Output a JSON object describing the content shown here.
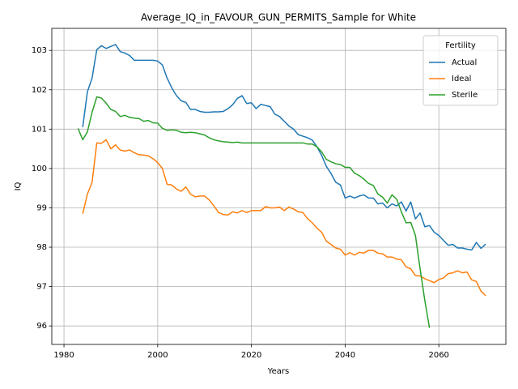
{
  "chart_data": {
    "type": "line",
    "title": "Average_IQ_in_FAVOUR_GUN_PERMITS_Sample for White",
    "x_label": "Years",
    "y_label": "IQ",
    "x": [
      1983,
      1984,
      1985,
      1986,
      1987,
      1988,
      1989,
      1990,
      1991,
      1992,
      1993,
      1994,
      1995,
      1996,
      1997,
      1998,
      1999,
      2000,
      2001,
      2002,
      2003,
      2004,
      2005,
      2006,
      2007,
      2008,
      2009,
      2010,
      2011,
      2012,
      2013,
      2014,
      2015,
      2016,
      2017,
      2018,
      2019,
      2020,
      2021,
      2022,
      2023,
      2024,
      2025,
      2026,
      2027,
      2028,
      2029,
      2030,
      2031,
      2032,
      2033,
      2034,
      2035,
      2036,
      2037,
      2038,
      2039,
      2040,
      2041,
      2042,
      2043,
      2044,
      2045,
      2046,
      2047,
      2048,
      2049,
      2050,
      2051,
      2052,
      2053,
      2054,
      2055,
      2056,
      2057,
      2058,
      2059,
      2060,
      2061,
      2062,
      2063,
      2064,
      2065,
      2066,
      2067,
      2068,
      2069,
      2070
    ],
    "series": [
      {
        "name": "Actual",
        "color": "#1f77b4",
        "values": [
          null,
          101.05,
          101.95,
          102.3,
          103.02,
          103.12,
          103.05,
          103.1,
          103.15,
          102.97,
          102.93,
          102.87,
          102.75,
          102.75,
          102.75,
          102.75,
          102.75,
          102.73,
          102.63,
          102.3,
          102.05,
          101.85,
          101.72,
          101.68,
          101.5,
          101.5,
          101.45,
          101.43,
          101.43,
          101.44,
          101.44,
          101.45,
          101.52,
          101.62,
          101.78,
          101.85,
          101.65,
          101.67,
          101.52,
          101.63,
          101.6,
          101.57,
          101.38,
          101.32,
          101.2,
          101.08,
          101.0,
          100.86,
          100.82,
          100.78,
          100.72,
          100.55,
          100.33,
          100.05,
          99.87,
          99.65,
          99.58,
          99.25,
          99.3,
          99.25,
          99.3,
          99.33,
          99.25,
          99.25,
          99.1,
          99.12,
          99.0,
          99.1,
          99.05,
          99.15,
          98.92,
          99.15,
          98.72,
          98.87,
          98.52,
          98.55,
          98.38,
          98.3,
          98.17,
          98.05,
          98.07,
          97.98,
          97.98,
          97.95,
          97.93,
          98.12,
          97.97,
          98.08
        ]
      },
      {
        "name": "Ideal",
        "color": "#ff7f0e",
        "values": [
          null,
          98.85,
          99.35,
          99.65,
          100.65,
          100.64,
          100.73,
          100.5,
          100.6,
          100.47,
          100.44,
          100.47,
          100.4,
          100.35,
          100.34,
          100.32,
          100.25,
          100.15,
          100.0,
          99.6,
          99.58,
          99.48,
          99.42,
          99.53,
          99.35,
          99.28,
          99.3,
          99.3,
          99.2,
          99.05,
          98.88,
          98.83,
          98.82,
          98.9,
          98.87,
          98.93,
          98.88,
          98.93,
          98.93,
          98.93,
          99.03,
          99.0,
          99.0,
          99.02,
          98.93,
          99.02,
          98.97,
          98.9,
          98.88,
          98.72,
          98.62,
          98.48,
          98.38,
          98.15,
          98.07,
          97.98,
          97.95,
          97.8,
          97.86,
          97.8,
          97.87,
          97.85,
          97.92,
          97.92,
          97.85,
          97.83,
          97.75,
          97.75,
          97.7,
          97.68,
          97.5,
          97.45,
          97.28,
          97.27,
          97.2,
          97.15,
          97.1,
          97.18,
          97.22,
          97.33,
          97.35,
          97.4,
          97.35,
          97.37,
          97.17,
          97.13,
          96.88,
          96.77
        ]
      },
      {
        "name": "Sterile",
        "color": "#2ca02c",
        "values": [
          101.02,
          100.73,
          100.93,
          101.43,
          101.82,
          101.79,
          101.66,
          101.5,
          101.45,
          101.32,
          101.35,
          101.3,
          101.28,
          101.27,
          101.2,
          101.22,
          101.16,
          101.15,
          101.02,
          100.97,
          100.98,
          100.97,
          100.92,
          100.91,
          100.92,
          100.91,
          100.88,
          100.85,
          100.78,
          100.73,
          100.7,
          100.68,
          100.67,
          100.66,
          100.67,
          100.65,
          100.65,
          100.65,
          100.65,
          100.65,
          100.65,
          100.65,
          100.65,
          100.65,
          100.65,
          100.65,
          100.65,
          100.65,
          100.65,
          100.62,
          100.62,
          100.55,
          100.42,
          100.23,
          100.17,
          100.12,
          100.1,
          100.03,
          100.03,
          99.88,
          99.82,
          99.73,
          99.62,
          99.57,
          99.35,
          99.27,
          99.12,
          99.33,
          99.22,
          98.9,
          98.62,
          98.63,
          98.3,
          97.45,
          96.65,
          95.95,
          null,
          null,
          null,
          null,
          null,
          null,
          null,
          null,
          null,
          null,
          null,
          null
        ]
      }
    ],
    "xlim": [
      1977.4,
      2074.3
    ],
    "xticks": [
      1980,
      2000,
      2020,
      2040,
      2060
    ],
    "ylim": [
      95.53,
      103.56
    ],
    "yticks": [
      96,
      97,
      98,
      99,
      100,
      101,
      102,
      103
    ],
    "grid": true,
    "legend_title": "Fertility",
    "legend_position": "upper right"
  }
}
